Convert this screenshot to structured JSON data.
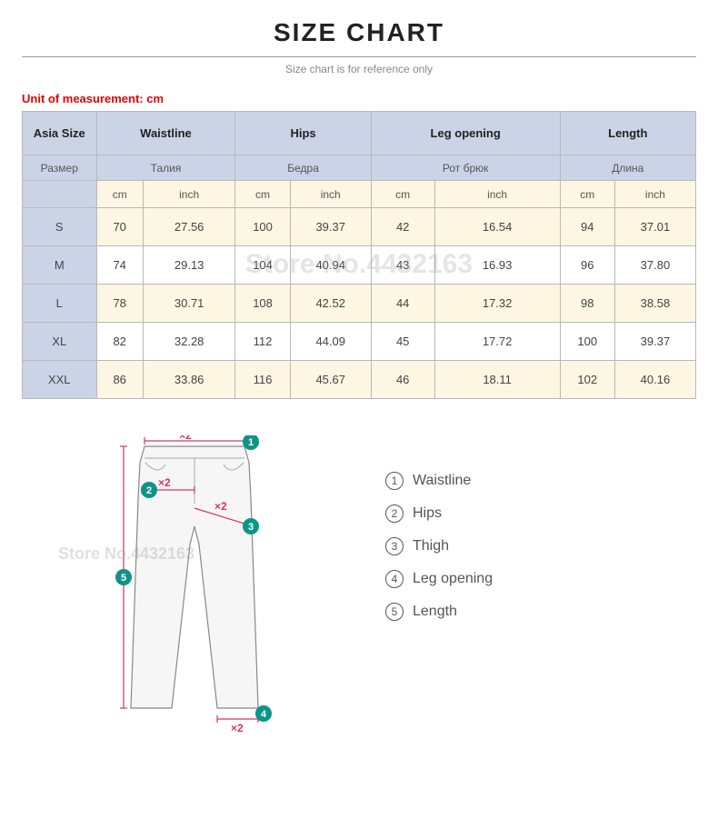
{
  "title": "SIZE CHART",
  "subtitle": "Size chart is for reference only",
  "unit_label": "Unit of measurement: cm",
  "watermark": "Store No.4432163",
  "header": {
    "en": [
      "Asia Size",
      "Waistline",
      "Hips",
      "Leg opening",
      "Length"
    ],
    "ru": [
      "Размер",
      "Талия",
      "Бедра",
      "Рот брюк",
      "Длина"
    ],
    "units": [
      "cm",
      "inch",
      "cm",
      "inch",
      "cm",
      "inch",
      "cm",
      "inch"
    ]
  },
  "rows": [
    {
      "size": "S",
      "vals": [
        "70",
        "27.56",
        "100",
        "39.37",
        "42",
        "16.54",
        "94",
        "37.01"
      ]
    },
    {
      "size": "M",
      "vals": [
        "74",
        "29.13",
        "104",
        "40.94",
        "43",
        "16.93",
        "96",
        "37.80"
      ]
    },
    {
      "size": "L",
      "vals": [
        "78",
        "30.71",
        "108",
        "42.52",
        "44",
        "17.32",
        "98",
        "38.58"
      ]
    },
    {
      "size": "XL",
      "vals": [
        "82",
        "32.28",
        "112",
        "44.09",
        "45",
        "17.72",
        "100",
        "39.37"
      ]
    },
    {
      "size": "XXL",
      "vals": [
        "86",
        "33.86",
        "116",
        "45.67",
        "46",
        "18.11",
        "102",
        "40.16"
      ]
    }
  ],
  "legend": [
    {
      "num": "1",
      "label": "Waistline"
    },
    {
      "num": "2",
      "label": "Hips"
    },
    {
      "num": "3",
      "label": "Thigh"
    },
    {
      "num": "4",
      "label": "Leg opening"
    },
    {
      "num": "5",
      "label": "Length"
    }
  ],
  "colors": {
    "header_bg": "#cbd4e6",
    "alt_bg": "#fdf6e3",
    "border": "#b8b8b8",
    "accent_red": "#e60000",
    "marker": "#0d9488",
    "dim_line": "#d6336c"
  }
}
